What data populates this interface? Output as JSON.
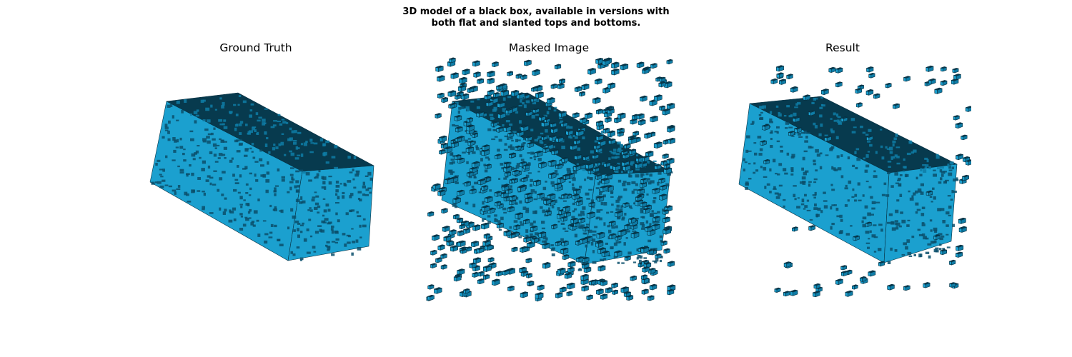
{
  "figure": {
    "title_line1": "3D model of a black box, available in versions with",
    "title_line2": "both flat and slanted tops and bottoms."
  },
  "panels": [
    {
      "title": "Ground Truth"
    },
    {
      "title": "Masked Image"
    },
    {
      "title": "Result"
    }
  ],
  "colors": {
    "voxel_light": "#1ba0cf",
    "voxel_mid": "#0e7ca6",
    "voxel_dark": "#0a4f6b",
    "voxel_top": "#073a4e",
    "edge": "#062f40"
  }
}
